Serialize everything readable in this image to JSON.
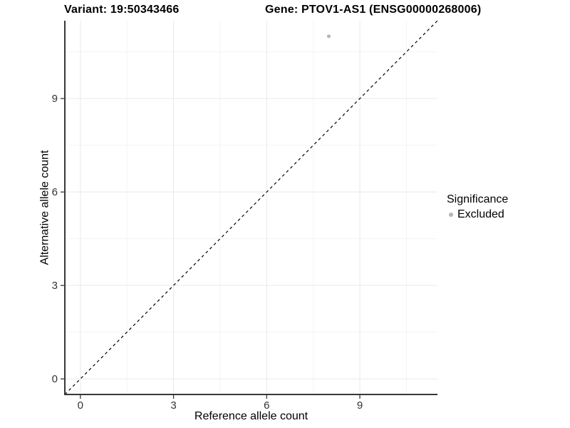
{
  "chart_data": {
    "type": "scatter",
    "title_left": "Variant: 19:50343466",
    "title_right": "Gene: PTOV1-AS1 (ENSG00000268006)",
    "xlabel": "Reference allele count",
    "ylabel": "Alternative allele count",
    "xlim": [
      -0.5,
      11.5
    ],
    "ylim": [
      -0.5,
      11.5
    ],
    "x_ticks": [
      0,
      3,
      6,
      9
    ],
    "y_ticks": [
      0,
      3,
      6,
      9
    ],
    "x_minor_ticks": [
      1.5,
      4.5,
      7.5,
      10.5
    ],
    "y_minor_ticks": [
      1.5,
      4.5,
      7.5,
      10.5
    ],
    "grid": true,
    "legend": {
      "position": "right",
      "title": "Significance",
      "entries": [
        {
          "label": "Excluded",
          "color": "#b4b4b4",
          "marker": "circle"
        }
      ]
    },
    "series": [
      {
        "name": "Excluded",
        "color": "#b4b4b4",
        "marker": "circle",
        "points": [
          [
            8,
            11
          ]
        ]
      }
    ],
    "reference_line": {
      "kind": "identity",
      "equation": "y = x",
      "style": "dashed",
      "color": "#000000"
    },
    "colors": {
      "background": "#ffffff",
      "grid_major": "#e9e9e9",
      "grid_minor": "#f4f4f4",
      "axis": "#383838",
      "tick_text": "#333333",
      "title_text": "#000000"
    }
  }
}
